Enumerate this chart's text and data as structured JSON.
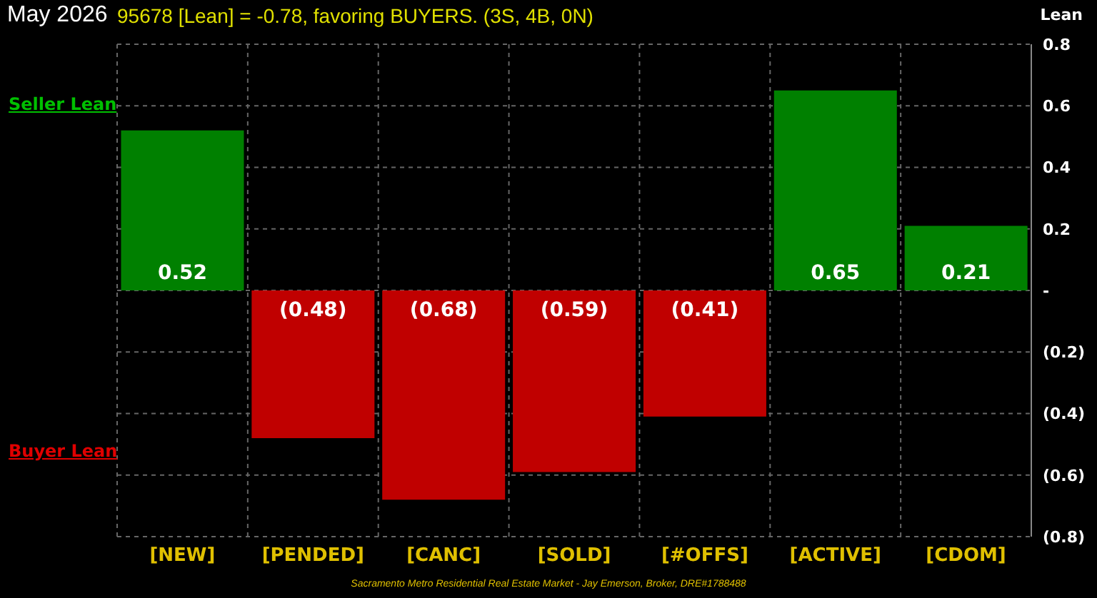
{
  "chart_data": {
    "type": "bar",
    "title": "May 2026",
    "subtitle": "95678 [Lean] = -0.78, favoring BUYERS. (3S, 4B, 0N)",
    "ylabel": "Lean",
    "categories": [
      "[NEW]",
      "[PENDED]",
      "[CANC]",
      "[SOLD]",
      "[#OFFS]",
      "[ACTIVE]",
      "[CDOM]"
    ],
    "values": [
      0.52,
      -0.48,
      -0.68,
      -0.59,
      -0.41,
      0.65,
      0.21
    ],
    "colors": [
      "#008000",
      "#c00000",
      "#c00000",
      "#c00000",
      "#c00000",
      "#008000",
      "#008000"
    ],
    "value_labels": [
      "0.52",
      "(0.48)",
      "(0.68)",
      "(0.59)",
      "(0.41)",
      "0.65",
      "0.21"
    ],
    "ylim": [
      -0.8,
      0.8
    ],
    "yticks": [
      {
        "value": -0.8,
        "label": "(0.8)"
      },
      {
        "value": -0.6,
        "label": "(0.6)"
      },
      {
        "value": -0.4,
        "label": "(0.4)"
      },
      {
        "value": -0.2,
        "label": "(0.2)"
      },
      {
        "value": 0,
        "label": "-"
      },
      0.2,
      0.4,
      0.6,
      0.8
    ],
    "grid": true,
    "annotations": [
      "Seller Lean",
      "Buyer Lean",
      "Sacramento Metro Residential Real Estate Market - Jay Emerson, Broker, DRE#1788488"
    ]
  }
}
